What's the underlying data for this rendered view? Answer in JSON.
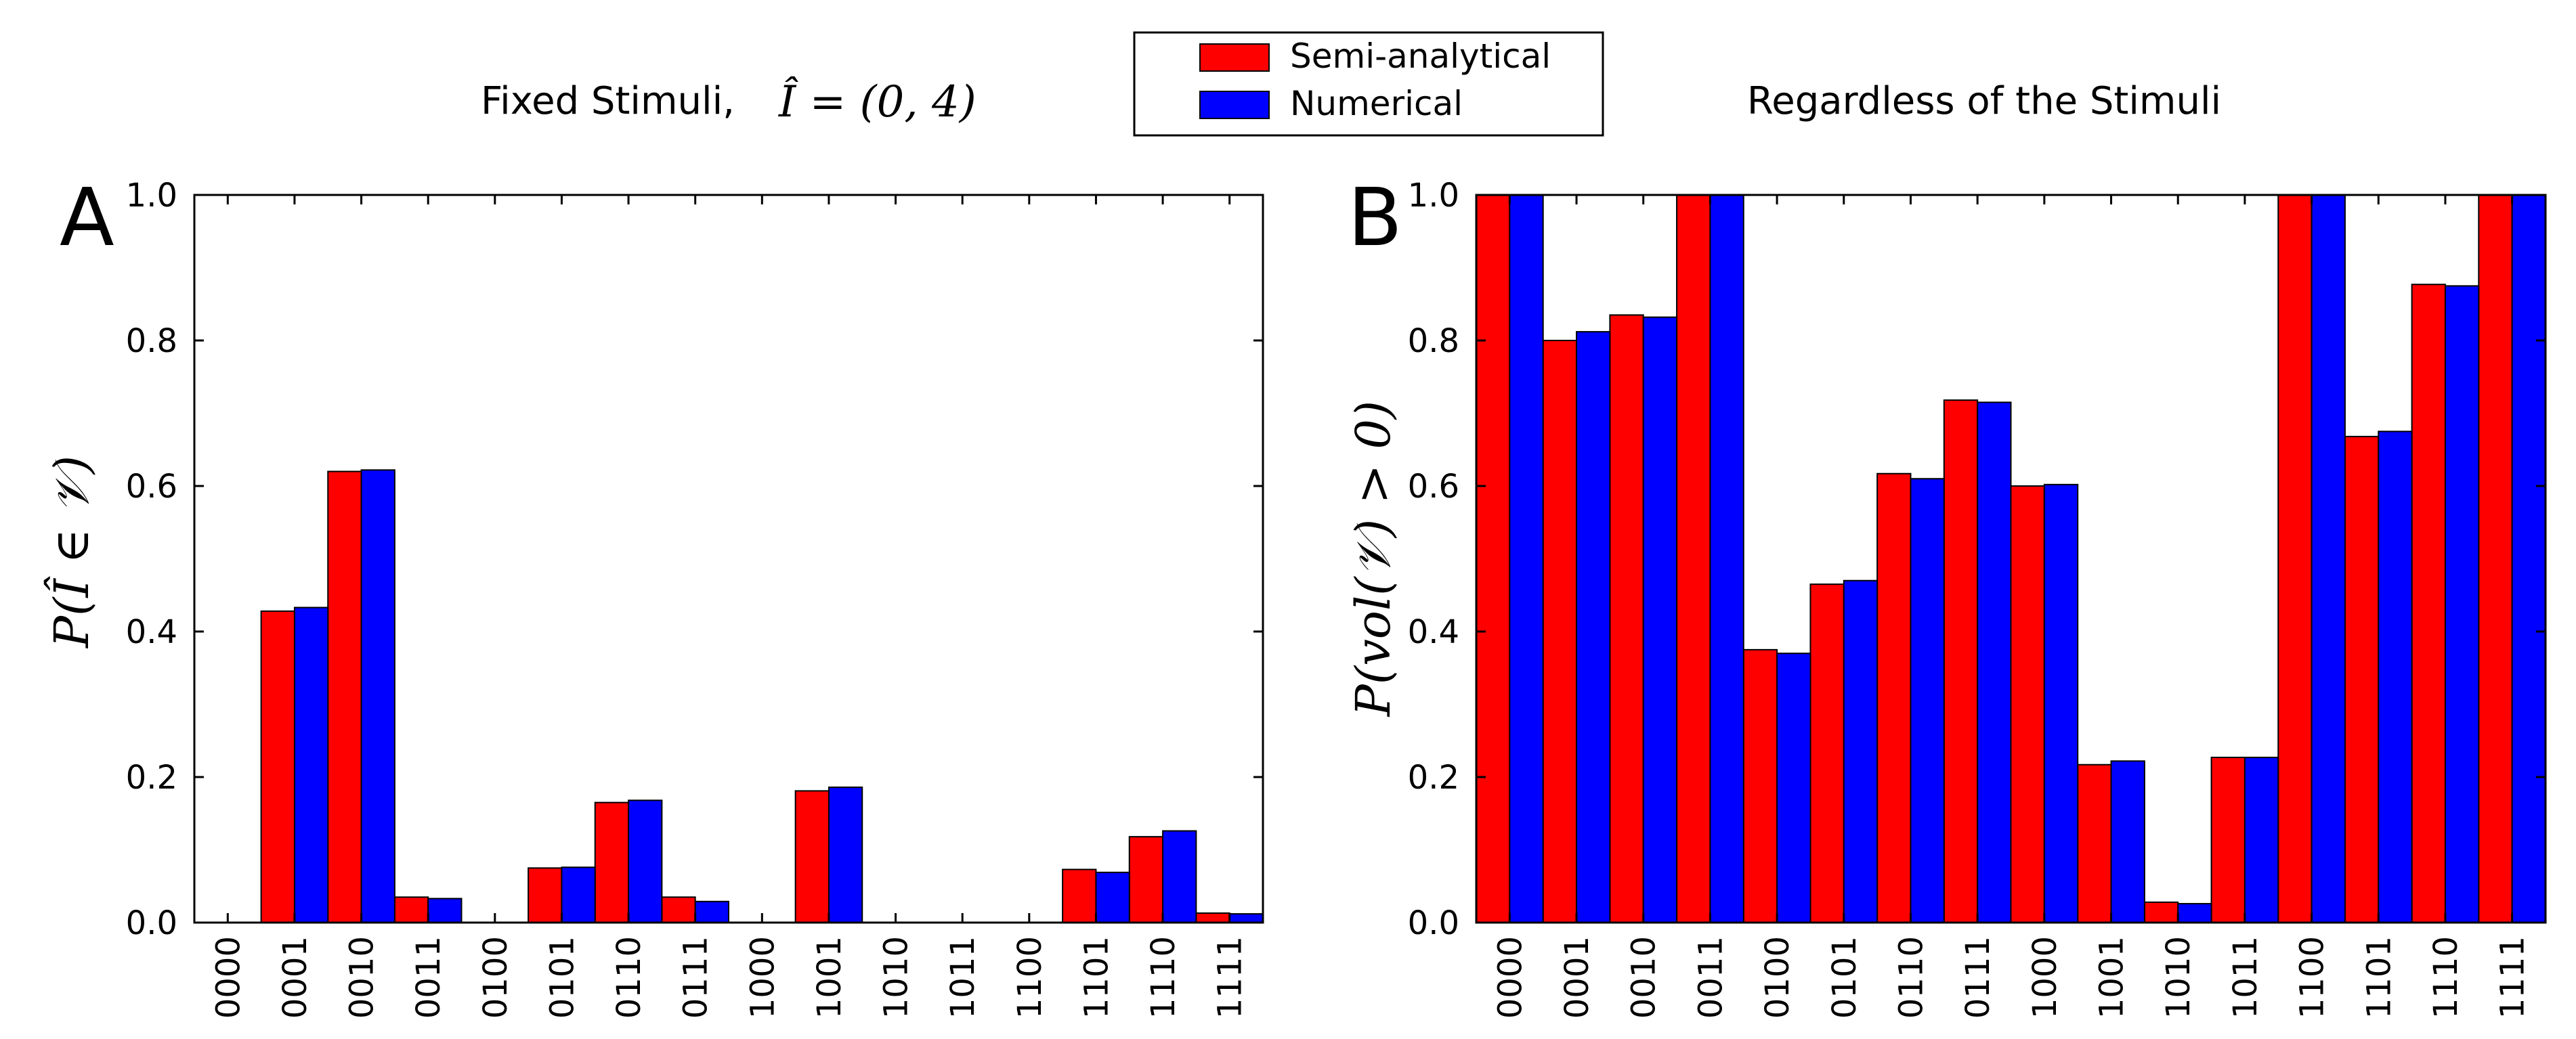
{
  "colors": {
    "semi": "#ff0000",
    "num": "#0000ff",
    "axis": "#000000"
  },
  "legend": {
    "entries": [
      "Semi-analytical",
      "Numerical"
    ]
  },
  "chart_data": [
    {
      "id": "A",
      "type": "bar",
      "panel_letter": "A",
      "title": "Fixed Stimuli,",
      "title_math": "Î = (0, 4)",
      "ylabel": "P(Î ∈ 𝒱)",
      "ylim": [
        0,
        1.0
      ],
      "yticks": [
        "0.0",
        "0.2",
        "0.4",
        "0.6",
        "0.8",
        "1.0"
      ],
      "categories": [
        "0000",
        "0001",
        "0010",
        "0011",
        "0100",
        "0101",
        "0110",
        "0111",
        "1000",
        "1001",
        "1010",
        "1011",
        "1100",
        "1101",
        "1110",
        "1111"
      ],
      "series": [
        {
          "name": "Semi-analytical",
          "values": [
            0,
            0.428,
            0.62,
            0.035,
            0,
            0.075,
            0.165,
            0.035,
            0,
            0.181,
            0,
            0,
            0,
            0.073,
            0.118,
            0.013
          ]
        },
        {
          "name": "Numerical",
          "values": [
            0,
            0.433,
            0.622,
            0.033,
            0,
            0.076,
            0.168,
            0.029,
            0,
            0.186,
            0,
            0,
            0,
            0.069,
            0.126,
            0.012
          ]
        }
      ]
    },
    {
      "id": "B",
      "type": "bar",
      "panel_letter": "B",
      "title": "Regardless of the Stimuli",
      "ylabel": "P(vol(𝒱) > 0)",
      "ylim": [
        0,
        1.0
      ],
      "yticks": [
        "0.0",
        "0.2",
        "0.4",
        "0.6",
        "0.8",
        "1.0"
      ],
      "categories": [
        "0000",
        "0001",
        "0010",
        "0011",
        "0100",
        "0101",
        "0110",
        "0111",
        "1000",
        "1001",
        "1010",
        "1011",
        "1100",
        "1101",
        "1110",
        "1111"
      ],
      "series": [
        {
          "name": "Semi-analytical",
          "values": [
            1.0,
            0.8,
            0.835,
            1.0,
            0.375,
            0.465,
            0.617,
            0.718,
            0.6,
            0.217,
            0.028,
            0.227,
            1.0,
            0.668,
            0.877,
            1.0
          ]
        },
        {
          "name": "Numerical",
          "values": [
            1.0,
            0.812,
            0.832,
            1.0,
            0.37,
            0.47,
            0.61,
            0.715,
            0.602,
            0.222,
            0.026,
            0.227,
            1.0,
            0.675,
            0.875,
            1.0
          ]
        }
      ]
    }
  ]
}
